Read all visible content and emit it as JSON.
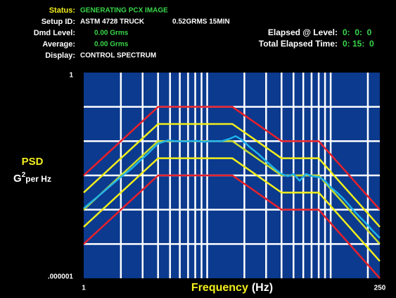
{
  "header": {
    "status": {
      "label": "Status:",
      "value": "GENERATING PCX IMAGE"
    },
    "setup_id": {
      "label": "Setup ID:",
      "value": "ASTM 4728 TRUCK",
      "level": "0.52GRMS 15MIN"
    },
    "dmd_level": {
      "label": "Dmd Level:",
      "value": "0.00 Grms"
    },
    "average": {
      "label": "Average:",
      "value": "0.00 Grms"
    },
    "display": {
      "label": "Display:",
      "value": "CONTROL SPECTRUM"
    },
    "elapsed_at_level": {
      "label": "Elapsed @ Level:",
      "value": "0:  0:  0"
    },
    "total_elapsed_time": {
      "label": "Total Elapsed Time:",
      "value": "0: 15:  0"
    }
  },
  "chart_data": {
    "type": "line",
    "ylabel": {
      "main": "PSD",
      "unit": "G",
      "exponent": "2",
      "suffix": "per Hz"
    },
    "xlabel": {
      "main": "Frequency",
      "unit": "(Hz)"
    },
    "log_x": true,
    "log_y": true,
    "grid": true,
    "background": "#0b3a8e",
    "xlim": [
      1,
      250
    ],
    "ylim": [
      1e-06,
      1
    ],
    "xticks": [
      {
        "value": 1,
        "label": "1"
      },
      {
        "value": 2,
        "label": null
      },
      {
        "value": 3,
        "label": null
      },
      {
        "value": 4,
        "label": null
      },
      {
        "value": 5,
        "label": null
      },
      {
        "value": 6,
        "label": null
      },
      {
        "value": 7,
        "label": null
      },
      {
        "value": 8,
        "label": null
      },
      {
        "value": 9,
        "label": null
      },
      {
        "value": 10,
        "label": null
      },
      {
        "value": 20,
        "label": null
      },
      {
        "value": 30,
        "label": null
      },
      {
        "value": 40,
        "label": null
      },
      {
        "value": 50,
        "label": null
      },
      {
        "value": 60,
        "label": null
      },
      {
        "value": 70,
        "label": null
      },
      {
        "value": 80,
        "label": null
      },
      {
        "value": 90,
        "label": null
      },
      {
        "value": 100,
        "label": null
      },
      {
        "value": 200,
        "label": null
      },
      {
        "value": 250,
        "label": "250"
      }
    ],
    "yticks": [
      {
        "value": 1,
        "label": "1"
      },
      {
        "value": 0.1,
        "label": null
      },
      {
        "value": 0.01,
        "label": null
      },
      {
        "value": 0.001,
        "label": null
      },
      {
        "value": 0.0001,
        "label": null
      },
      {
        "value": 1e-05,
        "label": null
      },
      {
        "value": 1e-06,
        "label": ".000001"
      }
    ],
    "series": [
      {
        "color": "#e8202a",
        "x": [
          1,
          4,
          16,
          40,
          80,
          250
        ],
        "values": [
          0.001,
          0.1,
          0.1,
          0.01,
          0.01,
          0.0001
        ]
      },
      {
        "color": "#f2ee1c",
        "x": [
          1,
          4,
          16,
          40,
          80,
          250
        ],
        "values": [
          0.000316,
          0.0316,
          0.0316,
          0.00316,
          0.00316,
          3.16e-05
        ]
      },
      {
        "color": "#c8dc2a",
        "x": [
          1,
          4,
          16,
          40,
          80,
          250
        ],
        "values": [
          0.0001,
          0.01,
          0.01,
          0.001,
          0.001,
          1e-05
        ]
      },
      {
        "color": "#f2ee1c",
        "x": [
          1,
          4,
          16,
          40,
          80,
          250
        ],
        "values": [
          3.16e-05,
          0.00316,
          0.00316,
          0.000316,
          0.000316,
          3.16e-06
        ]
      },
      {
        "color": "#e8202a",
        "x": [
          1,
          4,
          16,
          40,
          80,
          250
        ],
        "values": [
          1e-05,
          0.001,
          0.001,
          0.0001,
          0.0001,
          1e-06
        ]
      },
      {
        "color": "#1fb2e8",
        "x": [
          1,
          1.2,
          1.4,
          1.7,
          2,
          2.4,
          2.8,
          3.3,
          4,
          4.8,
          5.6,
          6.7,
          8,
          9.5,
          11,
          13,
          15,
          17,
          19,
          22,
          26,
          30,
          35,
          40,
          45,
          50,
          56,
          63,
          71,
          80,
          90,
          100,
          112,
          125,
          140,
          160,
          180,
          200,
          225,
          250
        ],
        "values": [
          0.00011,
          0.00019,
          0.0003,
          0.00055,
          0.0009,
          0.0015,
          0.0025,
          0.0043,
          0.0085,
          0.0105,
          0.01,
          0.0098,
          0.0102,
          0.0096,
          0.0101,
          0.0099,
          0.0115,
          0.014,
          0.011,
          0.0068,
          0.0042,
          0.0026,
          0.0016,
          0.0011,
          0.00095,
          0.0011,
          0.0007,
          0.0011,
          0.00095,
          0.0009,
          0.0007,
          0.00045,
          0.00032,
          0.00022,
          0.00014,
          8e-05,
          5.2e-05,
          3.5e-05,
          2.2e-05,
          1.5e-05
        ]
      }
    ]
  }
}
